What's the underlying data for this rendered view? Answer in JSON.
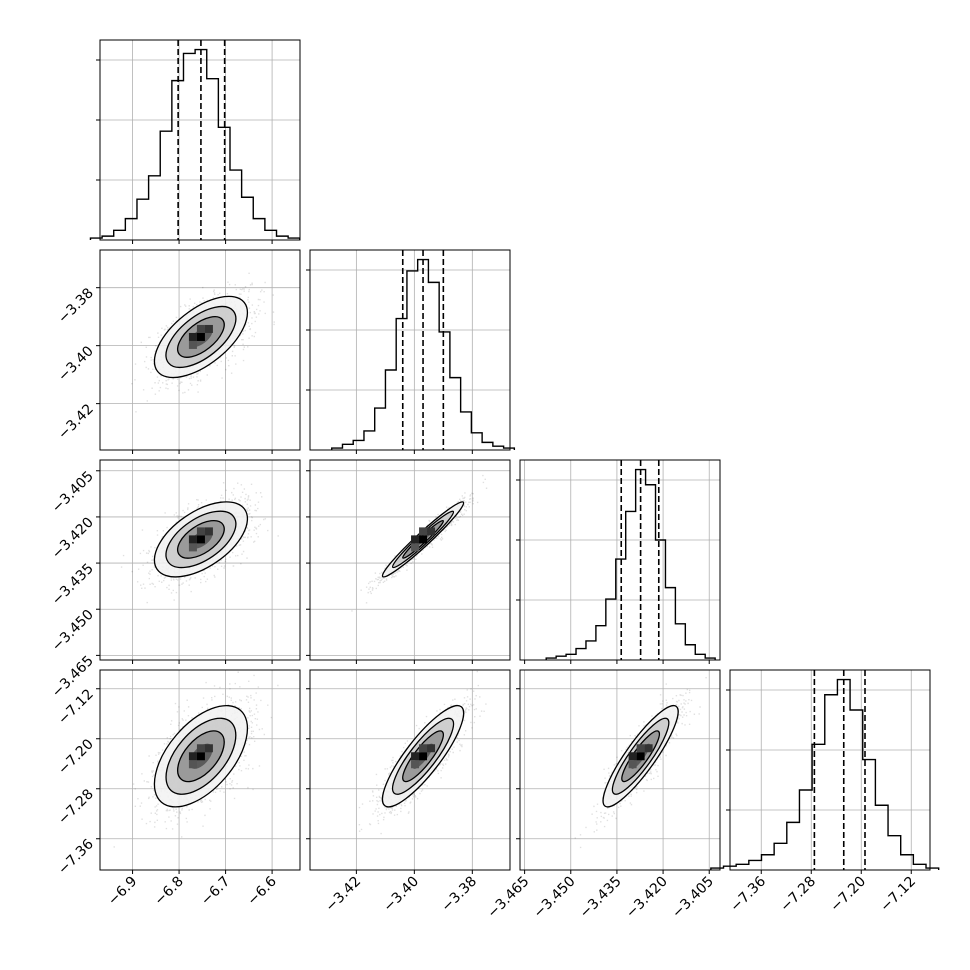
{
  "chart_data": {
    "type": "corner",
    "grid": true,
    "parameters": [
      {
        "index": 0,
        "range": [
          -6.97,
          -6.54
        ],
        "ticks": [
          -6.9,
          -6.8,
          -6.7,
          -6.6
        ],
        "tick_labels": [
          "−6.9",
          "−6.8",
          "−6.7",
          "−6.6"
        ],
        "quantiles": [
          -6.802,
          -6.753,
          -6.702
        ]
      },
      {
        "index": 1,
        "range": [
          -3.436,
          -3.367
        ],
        "ticks": [
          -3.42,
          -3.4,
          -3.38
        ],
        "tick_labels": [
          "−3.42",
          "−3.40",
          "−3.38"
        ],
        "quantiles": [
          -3.404,
          -3.397,
          -3.39
        ]
      },
      {
        "index": 2,
        "range": [
          -3.4665,
          -3.4015
        ],
        "ticks": [
          -3.465,
          -3.45,
          -3.435,
          -3.42,
          -3.405
        ],
        "tick_labels": [
          "−3.465",
          "−3.450",
          "−3.435",
          "−3.420",
          "−3.405"
        ],
        "quantiles": [
          -3.4336,
          -3.4273,
          -3.4214
        ]
      },
      {
        "index": 3,
        "range": [
          -7.41,
          -7.09
        ],
        "ticks": [
          -7.36,
          -7.28,
          -7.2,
          -7.12
        ],
        "tick_labels": [
          "−7.36",
          "−7.28",
          "−7.20",
          "−7.12"
        ],
        "quantiles": [
          -7.275,
          -7.228,
          -7.194
        ]
      }
    ],
    "histograms": [
      {
        "param": 0,
        "counts": [
          1,
          2,
          5,
          11,
          21,
          33,
          56,
          82,
          96,
          98,
          83,
          58,
          36,
          22,
          11,
          5,
          2,
          1
        ]
      },
      {
        "param": 1,
        "counts": [
          1,
          3,
          5,
          10,
          22,
          42,
          69,
          94,
          100,
          88,
          62,
          38,
          20,
          9,
          4,
          2,
          1
        ]
      },
      {
        "param": 2,
        "counts": [
          1,
          2,
          3,
          6,
          10,
          18,
          32,
          53,
          78,
          100,
          92,
          63,
          38,
          19,
          8,
          3,
          1
        ]
      },
      {
        "param": 3,
        "counts": [
          1,
          2,
          3,
          5,
          8,
          14,
          25,
          42,
          66,
          92,
          100,
          84,
          58,
          34,
          18,
          8,
          3,
          1
        ]
      }
    ],
    "pairs": [
      {
        "x": 0,
        "y": 1,
        "correlation": 0.6
      },
      {
        "x": 0,
        "y": 2,
        "correlation": 0.55
      },
      {
        "x": 1,
        "y": 2,
        "correlation": 0.97
      },
      {
        "x": 0,
        "y": 3,
        "correlation": 0.55
      },
      {
        "x": 1,
        "y": 3,
        "correlation": 0.85
      },
      {
        "x": 2,
        "y": 3,
        "correlation": 0.88
      }
    ]
  }
}
